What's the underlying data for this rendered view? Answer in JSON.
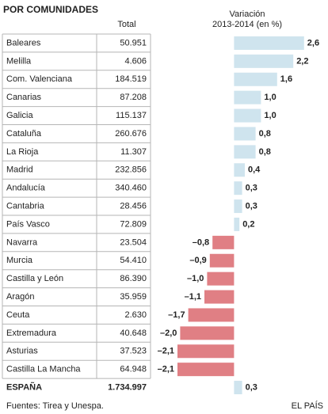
{
  "chart_data": {
    "type": "bar",
    "orientation": "horizontal",
    "title": "POR COMUNIDADES",
    "totals_header": "Total",
    "value_header": [
      "Variación",
      "2013-2014 (en %)"
    ],
    "categories": [
      "Baleares",
      "Melilla",
      "Com. Valenciana",
      "Canarias",
      "Galicia",
      "Cataluña",
      "La Rioja",
      "Madrid",
      "Andalucía",
      "Cantabria",
      "País Vasco",
      "Navarra",
      "Murcia",
      "Castilla y León",
      "Aragón",
      "Ceuta",
      "Extremadura",
      "Asturias",
      "Castilla La Mancha",
      "ESPAÑA"
    ],
    "totals": [
      "50.951",
      "4.606",
      "184.519",
      "87.208",
      "115.137",
      "260.676",
      "11.307",
      "232.856",
      "340.460",
      "28.456",
      "72.809",
      "23.504",
      "54.410",
      "86.390",
      "35.959",
      "2.630",
      "40.648",
      "37.523",
      "64.948",
      "1.734.997"
    ],
    "values": [
      2.6,
      2.2,
      1.6,
      1.0,
      1.0,
      0.8,
      0.8,
      0.4,
      0.3,
      0.3,
      0.2,
      -0.8,
      -0.9,
      -1.0,
      -1.1,
      -1.7,
      -2.0,
      -2.1,
      -2.1,
      0.3
    ],
    "value_labels": [
      "2,6",
      "2,2",
      "1,6",
      "1,0",
      "1,0",
      "0,8",
      "0,8",
      "0,4",
      "0,3",
      "0,3",
      "0,2",
      "–0,8",
      "–0,9",
      "–1,0",
      "–1,1",
      "–1,7",
      "–2,0",
      "–2,1",
      "–2,1",
      "0,3"
    ],
    "xlim": [
      -3.1,
      2.9
    ],
    "color_positive": "#cfe4ee",
    "color_negative": "#e07f84",
    "source": "Fuentes: Tirea y Unespa.",
    "credit": "EL PAÍS"
  }
}
